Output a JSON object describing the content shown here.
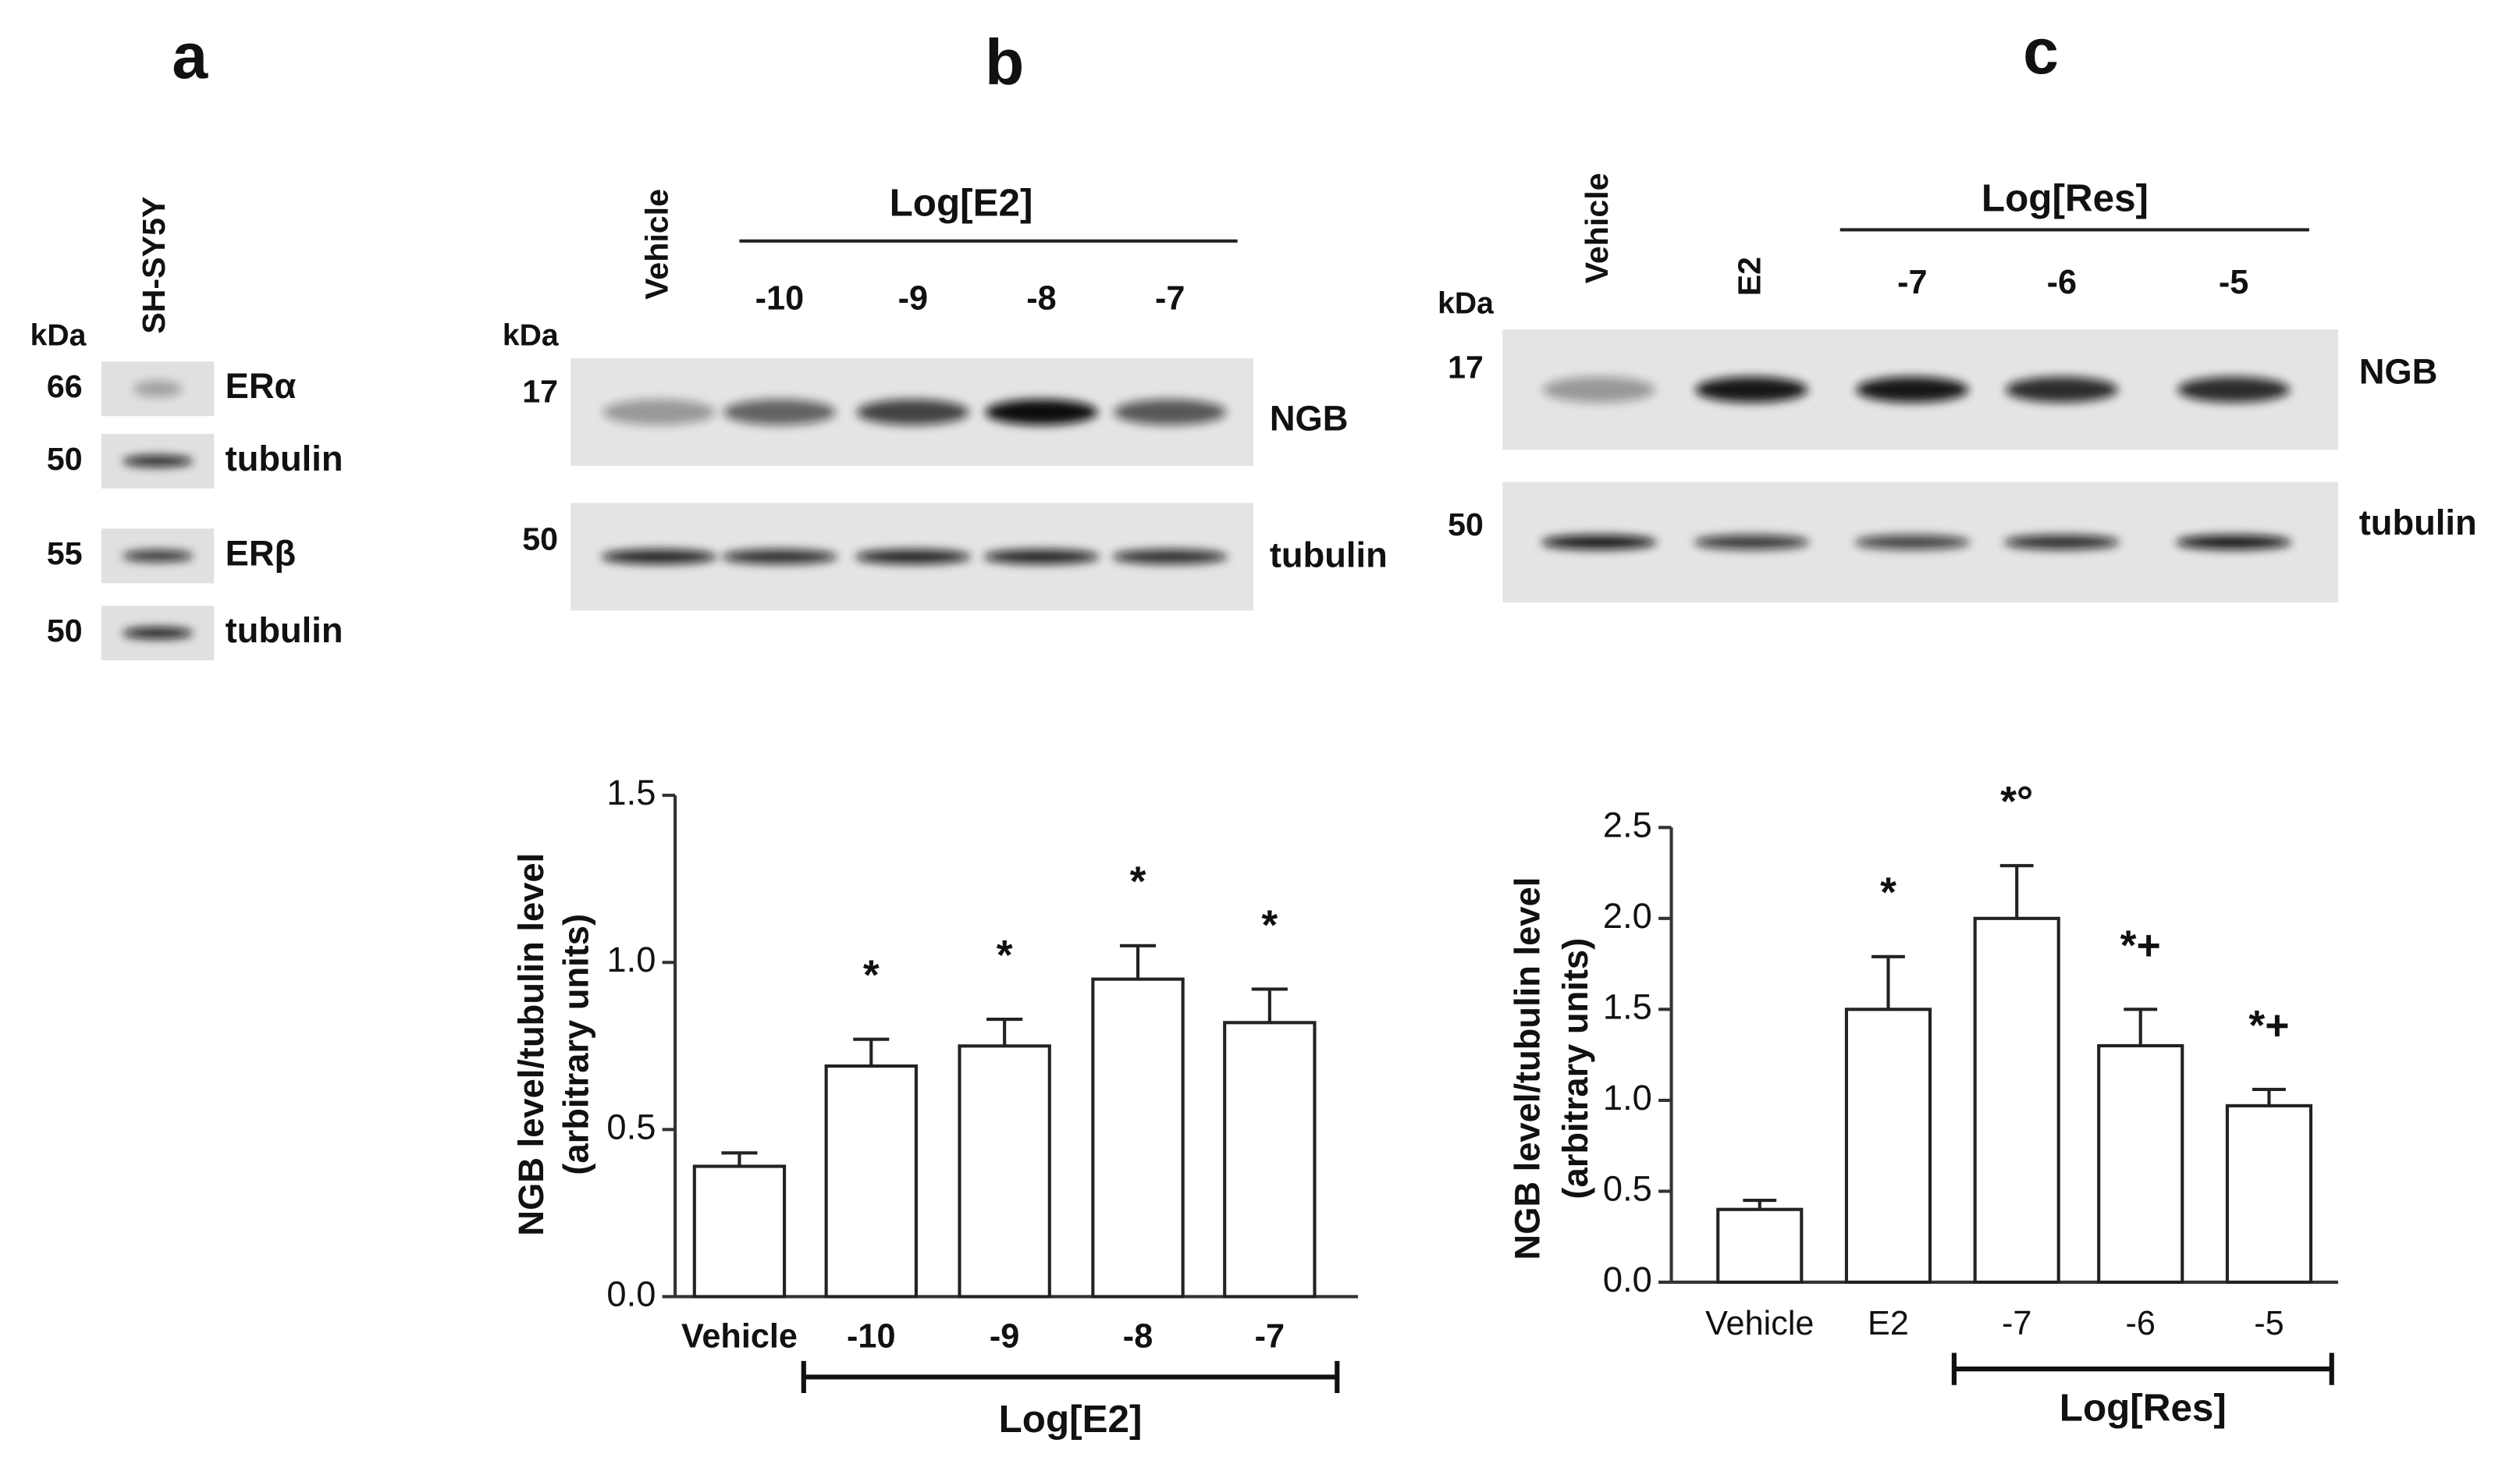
{
  "panel_labels": [
    "a",
    "b",
    "c"
  ],
  "blot_a": {
    "kda_label": "kDa",
    "lane": "SH-SY5Y",
    "rows": [
      {
        "kda": 66,
        "protein": "ERα"
      },
      {
        "kda": 50,
        "protein": "tubulin"
      },
      {
        "kda": 55,
        "protein": "ERβ"
      },
      {
        "kda": 50,
        "protein": "tubulin"
      }
    ]
  },
  "blot_b": {
    "kda_label": "kDa",
    "group": "Log[E2]",
    "lanes": [
      "Vehicle",
      "-10",
      "-9",
      "-8",
      "-7"
    ],
    "rows": [
      {
        "kda": 17,
        "protein": "NGB"
      },
      {
        "kda": 50,
        "protein": "tubulin"
      }
    ]
  },
  "blot_c": {
    "kda_label": "kDa",
    "group": "Log[Res]",
    "lanes": [
      "Vehicle",
      "E2",
      "-7",
      "-6",
      "-5"
    ],
    "rows": [
      {
        "kda": 17,
        "protein": "NGB"
      },
      {
        "kda": 50,
        "protein": "tubulin"
      }
    ]
  },
  "chart_data": [
    {
      "type": "bar",
      "ylabel": [
        "NGB level/tubulin level",
        "(arbitrary units)"
      ],
      "categories": [
        "Vehicle",
        "-10",
        "-9",
        "-8",
        "-7"
      ],
      "values": [
        0.39,
        0.69,
        0.75,
        0.95,
        0.82
      ],
      "errors": [
        0.04,
        0.08,
        0.08,
        0.1,
        0.1
      ],
      "annotations": [
        null,
        "*",
        "*",
        "*",
        "*"
      ],
      "group_label": "Log[E2]",
      "color": "#ffffff",
      "ylim": [
        0,
        1.5
      ],
      "yticks": [
        {
          "value": 0,
          "label": "0.0"
        },
        0.5,
        {
          "value": 1,
          "label": "1.0"
        },
        1.5
      ]
    },
    {
      "type": "bar",
      "ylabel": [
        "NGB level/tubulin level",
        "(arbitrary units)"
      ],
      "categories": [
        "Vehicle",
        "E2",
        "-7",
        "-6",
        "-5"
      ],
      "values": [
        0.4,
        1.5,
        2.0,
        1.3,
        0.97
      ],
      "errors": [
        0.05,
        0.29,
        0.29,
        0.2,
        0.09
      ],
      "annotations": [
        null,
        "*",
        "*°",
        "*+",
        "*+"
      ],
      "group_label": "Log[Res]",
      "color": "#ffffff",
      "ylim": [
        0,
        2.5
      ],
      "yticks": [
        {
          "value": 0,
          "label": "0.0"
        },
        0.5,
        {
          "value": 1,
          "label": "1.0"
        },
        1.5,
        {
          "value": 2,
          "label": "2.0"
        },
        2.5
      ]
    }
  ]
}
